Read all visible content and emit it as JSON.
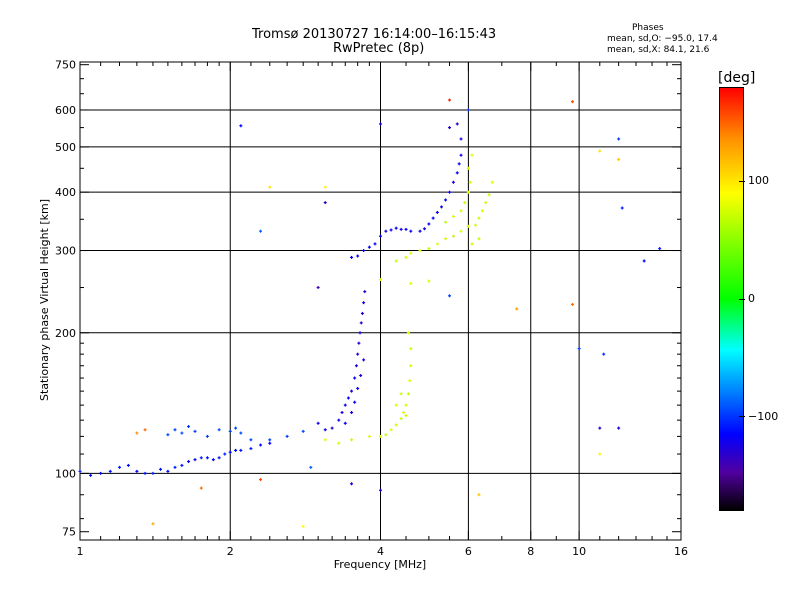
{
  "header": {
    "title": "Tromsø 20130727 16:14:00–16:15:43",
    "subtitle": "RwPretec (8p)",
    "stats_title": "Phases",
    "stats_o": "mean, sd,O: −95.0, 17.4",
    "stats_x": "mean, sd,X:  84.1, 21.6"
  },
  "colorbar": {
    "label": "[deg]",
    "ticks": [
      "100",
      "0",
      "−100"
    ],
    "tick_values": [
      100,
      0,
      -100
    ],
    "range": [
      -180,
      180
    ],
    "colors": [
      "#000000",
      "#5000a0",
      "#0000ff",
      "#0080ff",
      "#00ffff",
      "#00ff00",
      "#80ff00",
      "#ffff00",
      "#ff9000",
      "#ff0000"
    ]
  },
  "chart_data": {
    "type": "scatter",
    "title": "Tromsø 20130727 16:14:00–16:15:43",
    "subtitle": "RwPretec (8p)",
    "xlabel": "Frequency [MHz]",
    "ylabel": "Stationary phase Virtual Height [km]",
    "xscale": "log",
    "yscale": "log",
    "xlim": [
      1,
      16
    ],
    "ylim": [
      72,
      760
    ],
    "grid": true,
    "x_ticks": [
      1,
      2,
      4,
      6,
      8,
      10,
      16
    ],
    "x_tick_labels": [
      "1",
      "2",
      "4",
      "6",
      "8",
      "10",
      "16"
    ],
    "x_minor_ticks": [
      1.1,
      1.2,
      1.3,
      1.4,
      1.5,
      1.6,
      1.7,
      1.8,
      1.9,
      2.2,
      2.4,
      2.6,
      2.8,
      3,
      3.2,
      3.4,
      3.6,
      3.8,
      4.5,
      5,
      5.5,
      7,
      9,
      11,
      12,
      13,
      14,
      15
    ],
    "x_grid": [
      2,
      4,
      6,
      8,
      10
    ],
    "y_ticks": [
      75,
      100,
      200,
      300,
      400,
      500,
      600,
      750
    ],
    "y_tick_labels": [
      "75",
      "100",
      "200",
      "300",
      "400",
      "500",
      "600",
      "750"
    ],
    "y_minor_ticks": [
      80,
      90,
      110,
      120,
      130,
      140,
      150,
      160,
      170,
      180,
      190,
      250,
      350,
      450,
      550,
      650,
      700
    ],
    "y_grid": [
      100,
      200,
      300,
      400,
      500,
      600
    ],
    "color_scale": "phase_deg",
    "series": [
      {
        "name": "O",
        "phase": -95,
        "points": [
          {
            "x": 1.0,
            "y": 101,
            "p": -90
          },
          {
            "x": 1.05,
            "y": 99,
            "p": -95
          },
          {
            "x": 1.1,
            "y": 100,
            "p": -100
          },
          {
            "x": 1.15,
            "y": 101,
            "p": -95
          },
          {
            "x": 1.2,
            "y": 103,
            "p": -90
          },
          {
            "x": 1.25,
            "y": 104,
            "p": -95
          },
          {
            "x": 1.3,
            "y": 101,
            "p": -100
          },
          {
            "x": 1.35,
            "y": 100,
            "p": -95
          },
          {
            "x": 1.4,
            "y": 100,
            "p": -90
          },
          {
            "x": 1.45,
            "y": 102,
            "p": -95
          },
          {
            "x": 1.5,
            "y": 101,
            "p": -100
          },
          {
            "x": 1.55,
            "y": 103,
            "p": -90
          },
          {
            "x": 1.6,
            "y": 104,
            "p": -95
          },
          {
            "x": 1.65,
            "y": 106,
            "p": -95
          },
          {
            "x": 1.7,
            "y": 107,
            "p": -100
          },
          {
            "x": 1.75,
            "y": 108,
            "p": -90
          },
          {
            "x": 1.8,
            "y": 108,
            "p": -95
          },
          {
            "x": 1.85,
            "y": 107,
            "p": -100
          },
          {
            "x": 1.9,
            "y": 108,
            "p": -95
          },
          {
            "x": 1.95,
            "y": 110,
            "p": -90
          },
          {
            "x": 2.0,
            "y": 111,
            "p": -95
          },
          {
            "x": 2.05,
            "y": 112,
            "p": -100
          },
          {
            "x": 2.1,
            "y": 112,
            "p": -95
          },
          {
            "x": 2.2,
            "y": 113,
            "p": -90
          },
          {
            "x": 2.3,
            "y": 115,
            "p": -95
          },
          {
            "x": 2.4,
            "y": 116,
            "p": -100
          },
          {
            "x": 1.5,
            "y": 121,
            "p": -78
          },
          {
            "x": 1.55,
            "y": 124,
            "p": -80
          },
          {
            "x": 1.6,
            "y": 122,
            "p": -75
          },
          {
            "x": 1.65,
            "y": 126,
            "p": -82
          },
          {
            "x": 1.7,
            "y": 123,
            "p": -78
          },
          {
            "x": 1.8,
            "y": 120,
            "p": -80
          },
          {
            "x": 1.9,
            "y": 124,
            "p": -76
          },
          {
            "x": 2.0,
            "y": 123,
            "p": -80
          },
          {
            "x": 2.05,
            "y": 125,
            "p": -78
          },
          {
            "x": 2.1,
            "y": 122,
            "p": -75
          },
          {
            "x": 2.2,
            "y": 118,
            "p": -80
          },
          {
            "x": 2.4,
            "y": 118,
            "p": -78
          },
          {
            "x": 2.6,
            "y": 120,
            "p": -80
          },
          {
            "x": 2.8,
            "y": 123,
            "p": -76
          },
          {
            "x": 3.0,
            "y": 128,
            "p": -110
          },
          {
            "x": 3.1,
            "y": 124,
            "p": -105
          },
          {
            "x": 3.2,
            "y": 125,
            "p": -120
          },
          {
            "x": 3.3,
            "y": 130,
            "p": -110
          },
          {
            "x": 3.35,
            "y": 135,
            "p": -115
          },
          {
            "x": 3.4,
            "y": 140,
            "p": -105
          },
          {
            "x": 3.45,
            "y": 145,
            "p": -100
          },
          {
            "x": 3.5,
            "y": 150,
            "p": -110
          },
          {
            "x": 3.55,
            "y": 160,
            "p": -105
          },
          {
            "x": 3.58,
            "y": 170,
            "p": -110
          },
          {
            "x": 3.6,
            "y": 180,
            "p": -120
          },
          {
            "x": 3.62,
            "y": 190,
            "p": -115
          },
          {
            "x": 3.64,
            "y": 200,
            "p": -110
          },
          {
            "x": 3.66,
            "y": 210,
            "p": -120
          },
          {
            "x": 3.68,
            "y": 220,
            "p": -115
          },
          {
            "x": 3.7,
            "y": 232,
            "p": -110
          },
          {
            "x": 3.72,
            "y": 245,
            "p": -120
          },
          {
            "x": 3.4,
            "y": 128,
            "p": -100
          },
          {
            "x": 3.5,
            "y": 135,
            "p": -112
          },
          {
            "x": 3.55,
            "y": 142,
            "p": -105
          },
          {
            "x": 3.6,
            "y": 152,
            "p": -110
          },
          {
            "x": 3.65,
            "y": 162,
            "p": -120
          },
          {
            "x": 3.7,
            "y": 175,
            "p": -110
          },
          {
            "x": 3.5,
            "y": 290,
            "p": -100
          },
          {
            "x": 3.6,
            "y": 292,
            "p": -105
          },
          {
            "x": 3.7,
            "y": 300,
            "p": -110
          },
          {
            "x": 3.8,
            "y": 305,
            "p": -100
          },
          {
            "x": 3.9,
            "y": 310,
            "p": -105
          },
          {
            "x": 4.0,
            "y": 322,
            "p": -100
          },
          {
            "x": 4.1,
            "y": 330,
            "p": -110
          },
          {
            "x": 4.2,
            "y": 332,
            "p": -105
          },
          {
            "x": 4.3,
            "y": 335,
            "p": -100
          },
          {
            "x": 4.4,
            "y": 333,
            "p": -110
          },
          {
            "x": 4.5,
            "y": 333,
            "p": -105
          },
          {
            "x": 4.6,
            "y": 330,
            "p": -100
          },
          {
            "x": 4.8,
            "y": 330,
            "p": -105
          },
          {
            "x": 4.9,
            "y": 334,
            "p": -110
          },
          {
            "x": 5.0,
            "y": 342,
            "p": -105
          },
          {
            "x": 5.1,
            "y": 352,
            "p": -100
          },
          {
            "x": 5.2,
            "y": 362,
            "p": -105
          },
          {
            "x": 5.3,
            "y": 372,
            "p": -110
          },
          {
            "x": 5.4,
            "y": 385,
            "p": -100
          },
          {
            "x": 5.5,
            "y": 400,
            "p": -105
          },
          {
            "x": 5.6,
            "y": 420,
            "p": -110
          },
          {
            "x": 5.7,
            "y": 440,
            "p": -100
          },
          {
            "x": 5.75,
            "y": 460,
            "p": -105
          },
          {
            "x": 5.8,
            "y": 480,
            "p": -110
          },
          {
            "x": 5.5,
            "y": 550,
            "p": -120
          },
          {
            "x": 5.7,
            "y": 560,
            "p": -115
          },
          {
            "x": 5.8,
            "y": 520,
            "p": -110
          },
          {
            "x": 2.1,
            "y": 555,
            "p": -100
          },
          {
            "x": 4.0,
            "y": 560,
            "p": -110
          },
          {
            "x": 3.0,
            "y": 250,
            "p": -130
          },
          {
            "x": 3.1,
            "y": 380,
            "p": -120
          },
          {
            "x": 3.5,
            "y": 95,
            "p": -110
          },
          {
            "x": 4.0,
            "y": 92,
            "p": -120
          },
          {
            "x": 11.0,
            "y": 125,
            "p": -120
          },
          {
            "x": 12.0,
            "y": 125,
            "p": -110
          },
          {
            "x": 12.2,
            "y": 370,
            "p": -90
          },
          {
            "x": 13.5,
            "y": 285,
            "p": -100
          },
          {
            "x": 14.5,
            "y": 303,
            "p": -90
          },
          {
            "x": 10.0,
            "y": 185,
            "p": -80
          },
          {
            "x": 11.2,
            "y": 180,
            "p": -85
          },
          {
            "x": 12.0,
            "y": 520,
            "p": -80
          },
          {
            "x": 5.5,
            "y": 240,
            "p": -80
          },
          {
            "x": 2.3,
            "y": 330,
            "p": -70
          },
          {
            "x": 2.9,
            "y": 103,
            "p": -70
          },
          {
            "x": 6.0,
            "y": 600,
            "p": -85
          }
        ]
      },
      {
        "name": "X",
        "phase": 84,
        "points": [
          {
            "x": 3.1,
            "y": 118,
            "p": 90
          },
          {
            "x": 3.3,
            "y": 116,
            "p": 85
          },
          {
            "x": 3.5,
            "y": 118,
            "p": 80
          },
          {
            "x": 3.8,
            "y": 120,
            "p": 90
          },
          {
            "x": 4.0,
            "y": 120,
            "p": 85
          },
          {
            "x": 4.1,
            "y": 121,
            "p": 80
          },
          {
            "x": 4.2,
            "y": 124,
            "p": 90
          },
          {
            "x": 4.3,
            "y": 127,
            "p": 85
          },
          {
            "x": 4.4,
            "y": 131,
            "p": 80
          },
          {
            "x": 4.45,
            "y": 135,
            "p": 90
          },
          {
            "x": 4.5,
            "y": 140,
            "p": 85
          },
          {
            "x": 4.55,
            "y": 148,
            "p": 80
          },
          {
            "x": 4.58,
            "y": 158,
            "p": 90
          },
          {
            "x": 4.6,
            "y": 170,
            "p": 85
          },
          {
            "x": 4.6,
            "y": 185,
            "p": 80
          },
          {
            "x": 4.55,
            "y": 200,
            "p": 90
          },
          {
            "x": 4.4,
            "y": 148,
            "p": 82
          },
          {
            "x": 4.3,
            "y": 140,
            "p": 88
          },
          {
            "x": 4.5,
            "y": 133,
            "p": 84
          },
          {
            "x": 4.3,
            "y": 285,
            "p": 80
          },
          {
            "x": 4.5,
            "y": 290,
            "p": 85
          },
          {
            "x": 4.6,
            "y": 296,
            "p": 90
          },
          {
            "x": 4.8,
            "y": 300,
            "p": 85
          },
          {
            "x": 5.0,
            "y": 303,
            "p": 80
          },
          {
            "x": 5.2,
            "y": 310,
            "p": 90
          },
          {
            "x": 5.4,
            "y": 318,
            "p": 85
          },
          {
            "x": 5.6,
            "y": 322,
            "p": 80
          },
          {
            "x": 5.8,
            "y": 330,
            "p": 90
          },
          {
            "x": 6.0,
            "y": 338,
            "p": 85
          },
          {
            "x": 5.4,
            "y": 345,
            "p": 80
          },
          {
            "x": 5.6,
            "y": 355,
            "p": 90
          },
          {
            "x": 5.8,
            "y": 365,
            "p": 85
          },
          {
            "x": 5.9,
            "y": 380,
            "p": 80
          },
          {
            "x": 6.0,
            "y": 400,
            "p": 90
          },
          {
            "x": 6.05,
            "y": 420,
            "p": 85
          },
          {
            "x": 6.0,
            "y": 450,
            "p": 80
          },
          {
            "x": 6.1,
            "y": 480,
            "p": 90
          },
          {
            "x": 6.2,
            "y": 340,
            "p": 85
          },
          {
            "x": 6.3,
            "y": 352,
            "p": 80
          },
          {
            "x": 6.4,
            "y": 365,
            "p": 90
          },
          {
            "x": 6.5,
            "y": 380,
            "p": 85
          },
          {
            "x": 6.6,
            "y": 395,
            "p": 80
          },
          {
            "x": 6.7,
            "y": 420,
            "p": 90
          },
          {
            "x": 6.1,
            "y": 310,
            "p": 85
          },
          {
            "x": 6.3,
            "y": 318,
            "p": 80
          },
          {
            "x": 4.0,
            "y": 260,
            "p": 88
          },
          {
            "x": 4.6,
            "y": 255,
            "p": 90
          },
          {
            "x": 5.0,
            "y": 258,
            "p": 85
          },
          {
            "x": 2.4,
            "y": 410,
            "p": 110
          },
          {
            "x": 3.1,
            "y": 410,
            "p": 105
          },
          {
            "x": 6.3,
            "y": 90,
            "p": 120
          },
          {
            "x": 1.4,
            "y": 78,
            "p": 130
          },
          {
            "x": 1.35,
            "y": 124,
            "p": 150
          },
          {
            "x": 1.3,
            "y": 122,
            "p": 140
          },
          {
            "x": 2.3,
            "y": 97,
            "p": 160
          },
          {
            "x": 1.75,
            "y": 93,
            "p": 150
          },
          {
            "x": 7.5,
            "y": 225,
            "p": 135
          },
          {
            "x": 9.7,
            "y": 625,
            "p": 160
          },
          {
            "x": 9.7,
            "y": 230,
            "p": 150
          },
          {
            "x": 11.0,
            "y": 490,
            "p": 110
          },
          {
            "x": 12.0,
            "y": 470,
            "p": 120
          },
          {
            "x": 11.0,
            "y": 110,
            "p": 95
          },
          {
            "x": 5.5,
            "y": 630,
            "p": 170
          },
          {
            "x": 2.8,
            "y": 77,
            "p": 100
          }
        ]
      }
    ]
  }
}
